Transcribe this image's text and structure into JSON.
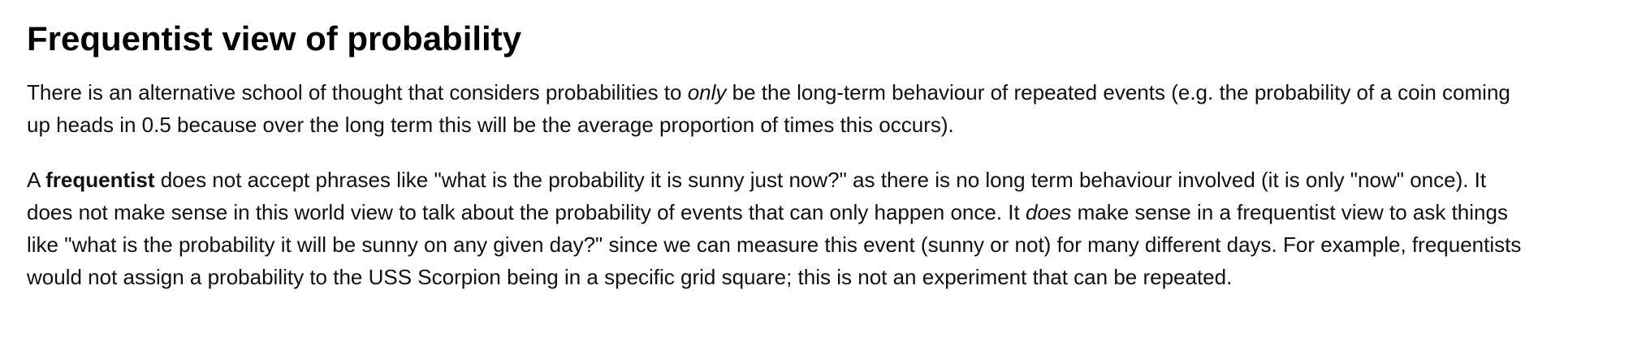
{
  "heading": "Frequentist view of probability",
  "paragraph1": {
    "line1_a": "There is an alternative school of thought that considers probabilities to ",
    "line1_em": "only",
    "line1_b": " be the long-term behaviour of repeated events (e.g. the probability of a coin coming",
    "line2": "up heads in 0.5 because over the long term this will be the average proportion of times this occurs)."
  },
  "paragraph2": {
    "line1_a": "A ",
    "line1_strong": "frequentist",
    "line1_b": " does not accept phrases like \"what is the probability it is sunny just now?\" as there is no long term behaviour involved (it is only \"now\" once). It",
    "line2_a": "does not make sense in this world view to talk about the probability of events that can only happen once. It ",
    "line2_em": "does",
    "line2_b": " make sense in a frequentist view to ask things",
    "line3": "like \"what is the probability it will be sunny on any given day?\" since we can measure this event (sunny or not) for many different days. For example, frequentists",
    "line4": "would not assign a probability to the USS Scorpion being in a specific grid square; this is not an experiment that can be repeated."
  }
}
